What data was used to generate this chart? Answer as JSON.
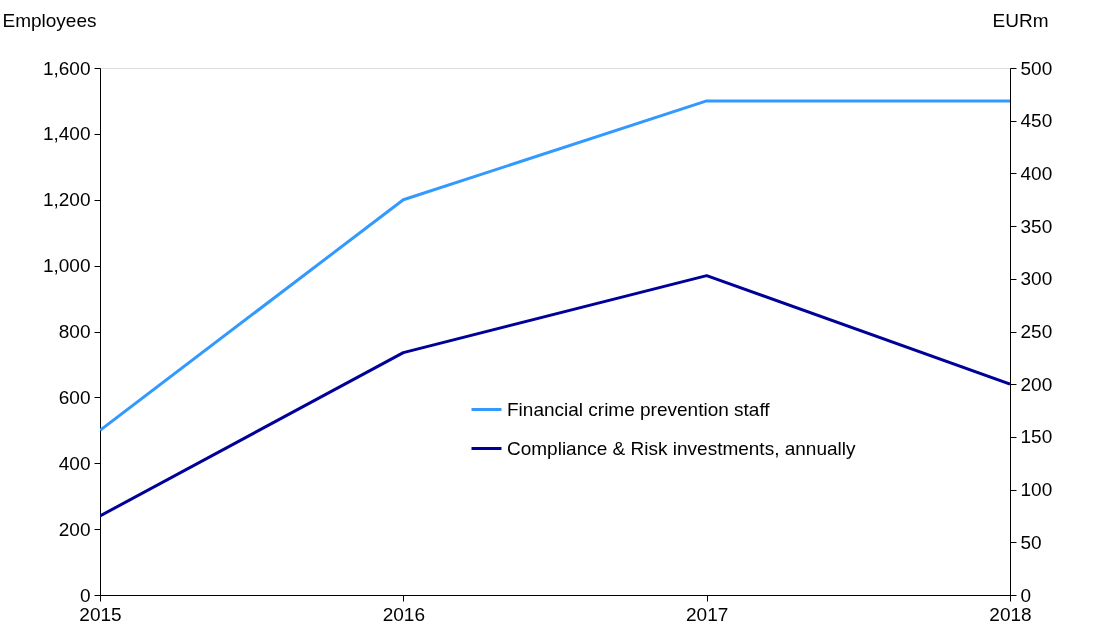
{
  "chart_data": {
    "type": "line",
    "ylabel": "Employees",
    "y2label": "EURm",
    "x": [
      2015,
      2016,
      2017,
      2018
    ],
    "series": [
      {
        "name": "Financial crime prevention staff",
        "color": "#3399ff",
        "values": [
          500,
          1200,
          1500,
          1500
        ]
      },
      {
        "name": "Compliance & Risk investments, annually",
        "color": "#000099",
        "values": [
          75,
          230,
          303,
          200
        ],
        "axis": "y2"
      }
    ],
    "xlim": [
      2015,
      2018
    ],
    "xticks": [
      2015,
      2016,
      2017,
      2018
    ],
    "ylim": [
      0,
      1600
    ],
    "yticks": [
      0,
      200,
      400,
      600,
      800,
      {
        "value": 1000,
        "label": "1,000"
      },
      {
        "value": 1200,
        "label": "1,200"
      },
      {
        "value": 1400,
        "label": "1,400"
      },
      {
        "value": 1600,
        "label": "1,600"
      }
    ],
    "y2lim": [
      0,
      500
    ],
    "y2ticks": [
      0,
      50,
      100,
      150,
      200,
      250,
      300,
      350,
      400,
      450,
      500
    ],
    "grid": false,
    "legend": "right",
    "marker": "none",
    "line_style": "solid"
  }
}
